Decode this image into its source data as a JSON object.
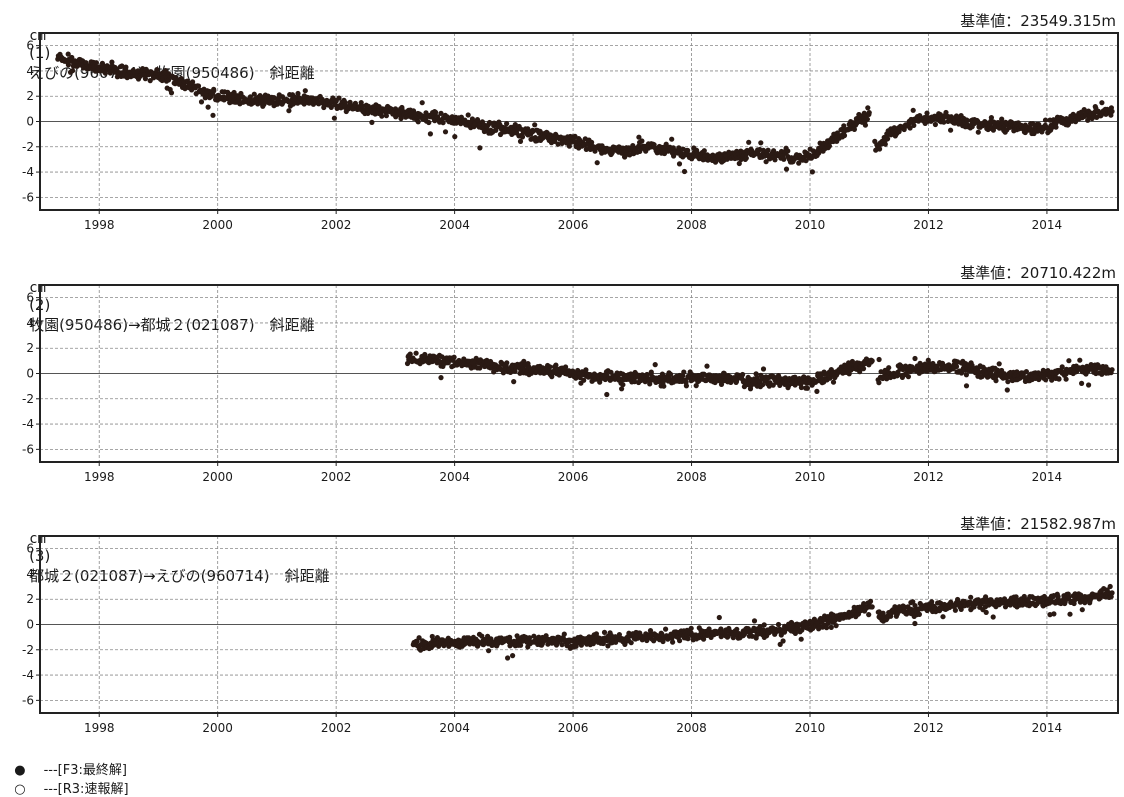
{
  "legend": {
    "final_symbol": "●",
    "final_label": "---[F3:最終解]",
    "rapid_symbol": "○",
    "rapid_label": "---[R3:速報解]"
  },
  "panels": [
    {
      "unit": "cm",
      "number": "(1)",
      "title": "えびの(960714)→牧園(950486)　斜距離",
      "baseline": "基準値：23549.315m"
    },
    {
      "unit": "cm",
      "number": "(2)",
      "title": "牧園(950486)→都城２(021087)　斜距離",
      "baseline": "基準値：20710.422m"
    },
    {
      "unit": "cm",
      "number": "(3)",
      "title": "都城２(021087)→えびの(960714)　斜距離",
      "baseline": "基準値：21582.987m"
    }
  ],
  "chart_data": [
    {
      "type": "scatter",
      "ylabel": "cm",
      "xlim": [
        1997.0,
        2015.2
      ],
      "ylim": [
        -7,
        7
      ],
      "x_ticks": [
        "1998",
        "2000",
        "2002",
        "2004",
        "2006",
        "2008",
        "2010",
        "2012",
        "2014"
      ],
      "y_ticks": [
        "6",
        "4",
        "2",
        "0",
        "-2",
        "-4",
        "-6"
      ],
      "grid": true,
      "marker_color": "#2a1a14",
      "series": [
        {
          "points": [
            [
              1997.3,
              5.2
            ],
            [
              1997.6,
              4.6
            ],
            [
              1997.9,
              4.4
            ],
            [
              1998.3,
              4.1
            ],
            [
              1998.6,
              3.8
            ],
            [
              1998.9,
              3.8
            ],
            [
              1999.2,
              3.5
            ],
            [
              1999.4,
              3.1
            ],
            [
              1999.7,
              2.5
            ],
            [
              2000.0,
              2.0
            ],
            [
              2000.5,
              1.7
            ],
            [
              2001.0,
              1.7
            ],
            [
              2001.5,
              1.7
            ],
            [
              2002.0,
              1.4
            ],
            [
              2002.5,
              1.0
            ],
            [
              2003.0,
              0.7
            ],
            [
              2003.5,
              0.4
            ],
            [
              2004.0,
              0.1
            ],
            [
              2004.5,
              -0.4
            ],
            [
              2005.0,
              -0.7
            ],
            [
              2005.5,
              -1.1
            ],
            [
              2006.0,
              -1.5
            ],
            [
              2006.5,
              -2.2
            ],
            [
              2006.9,
              -2.4
            ],
            [
              2007.3,
              -2.0
            ],
            [
              2007.7,
              -2.3
            ],
            [
              2008.0,
              -2.6
            ],
            [
              2008.5,
              -2.8
            ],
            [
              2009.0,
              -2.6
            ],
            [
              2009.5,
              -2.6
            ],
            [
              2009.9,
              -3.0
            ],
            [
              2010.3,
              -1.8
            ],
            [
              2010.7,
              -0.3
            ],
            [
              2011.0,
              0.7
            ],
            [
              2011.1,
              -2.0
            ],
            [
              2011.4,
              -1.0
            ],
            [
              2011.8,
              0.1
            ],
            [
              2012.2,
              0.3
            ],
            [
              2012.6,
              -0.1
            ],
            [
              2013.0,
              -0.2
            ],
            [
              2013.5,
              -0.4
            ],
            [
              2013.9,
              -0.6
            ],
            [
              2014.3,
              0.0
            ],
            [
              2014.7,
              0.6
            ],
            [
              2015.1,
              0.8
            ]
          ]
        }
      ]
    },
    {
      "type": "scatter",
      "ylabel": "cm",
      "xlim": [
        1997.0,
        2015.2
      ],
      "ylim": [
        -7,
        7
      ],
      "x_ticks": [
        "1998",
        "2000",
        "2002",
        "2004",
        "2006",
        "2008",
        "2010",
        "2012",
        "2014"
      ],
      "y_ticks": [
        "6",
        "4",
        "2",
        "0",
        "-2",
        "-4",
        "-6"
      ],
      "grid": true,
      "marker_color": "#2a1a14",
      "series": [
        {
          "points": [
            [
              2003.2,
              1.1
            ],
            [
              2003.6,
              1.1
            ],
            [
              2004.0,
              0.9
            ],
            [
              2004.5,
              0.7
            ],
            [
              2005.0,
              0.4
            ],
            [
              2005.5,
              0.2
            ],
            [
              2006.0,
              0.0
            ],
            [
              2006.5,
              -0.3
            ],
            [
              2007.0,
              -0.3
            ],
            [
              2007.5,
              -0.4
            ],
            [
              2008.0,
              -0.4
            ],
            [
              2008.5,
              -0.4
            ],
            [
              2009.0,
              -0.6
            ],
            [
              2009.5,
              -0.6
            ],
            [
              2010.0,
              -0.7
            ],
            [
              2010.5,
              0.1
            ],
            [
              2010.9,
              0.8
            ],
            [
              2011.05,
              1.0
            ],
            [
              2011.15,
              -0.3
            ],
            [
              2011.5,
              0.2
            ],
            [
              2012.0,
              0.5
            ],
            [
              2012.5,
              0.5
            ],
            [
              2013.0,
              0.0
            ],
            [
              2013.5,
              -0.3
            ],
            [
              2014.0,
              -0.1
            ],
            [
              2014.5,
              0.3
            ],
            [
              2015.1,
              0.3
            ]
          ]
        }
      ]
    },
    {
      "type": "scatter",
      "ylabel": "cm",
      "xlim": [
        1997.0,
        2015.2
      ],
      "ylim": [
        -7,
        7
      ],
      "x_ticks": [
        "1998",
        "2000",
        "2002",
        "2004",
        "2006",
        "2008",
        "2010",
        "2012",
        "2014"
      ],
      "y_ticks": [
        "6",
        "4",
        "2",
        "0",
        "-2",
        "-4",
        "-6"
      ],
      "grid": true,
      "marker_color": "#2a1a14",
      "series": [
        {
          "points": [
            [
              2003.3,
              -1.6
            ],
            [
              2003.6,
              -1.5
            ],
            [
              2004.0,
              -1.4
            ],
            [
              2004.5,
              -1.3
            ],
            [
              2005.0,
              -1.3
            ],
            [
              2005.5,
              -1.3
            ],
            [
              2006.0,
              -1.3
            ],
            [
              2006.5,
              -1.2
            ],
            [
              2007.0,
              -1.0
            ],
            [
              2007.5,
              -0.9
            ],
            [
              2008.0,
              -0.8
            ],
            [
              2008.5,
              -0.7
            ],
            [
              2009.0,
              -0.6
            ],
            [
              2009.5,
              -0.4
            ],
            [
              2010.0,
              -0.1
            ],
            [
              2010.5,
              0.5
            ],
            [
              2010.9,
              1.2
            ],
            [
              2011.05,
              1.4
            ],
            [
              2011.15,
              0.5
            ],
            [
              2011.5,
              1.0
            ],
            [
              2012.0,
              1.4
            ],
            [
              2012.5,
              1.5
            ],
            [
              2013.0,
              1.7
            ],
            [
              2013.5,
              1.8
            ],
            [
              2014.0,
              1.9
            ],
            [
              2014.5,
              2.1
            ],
            [
              2015.1,
              2.5
            ]
          ]
        }
      ]
    }
  ]
}
